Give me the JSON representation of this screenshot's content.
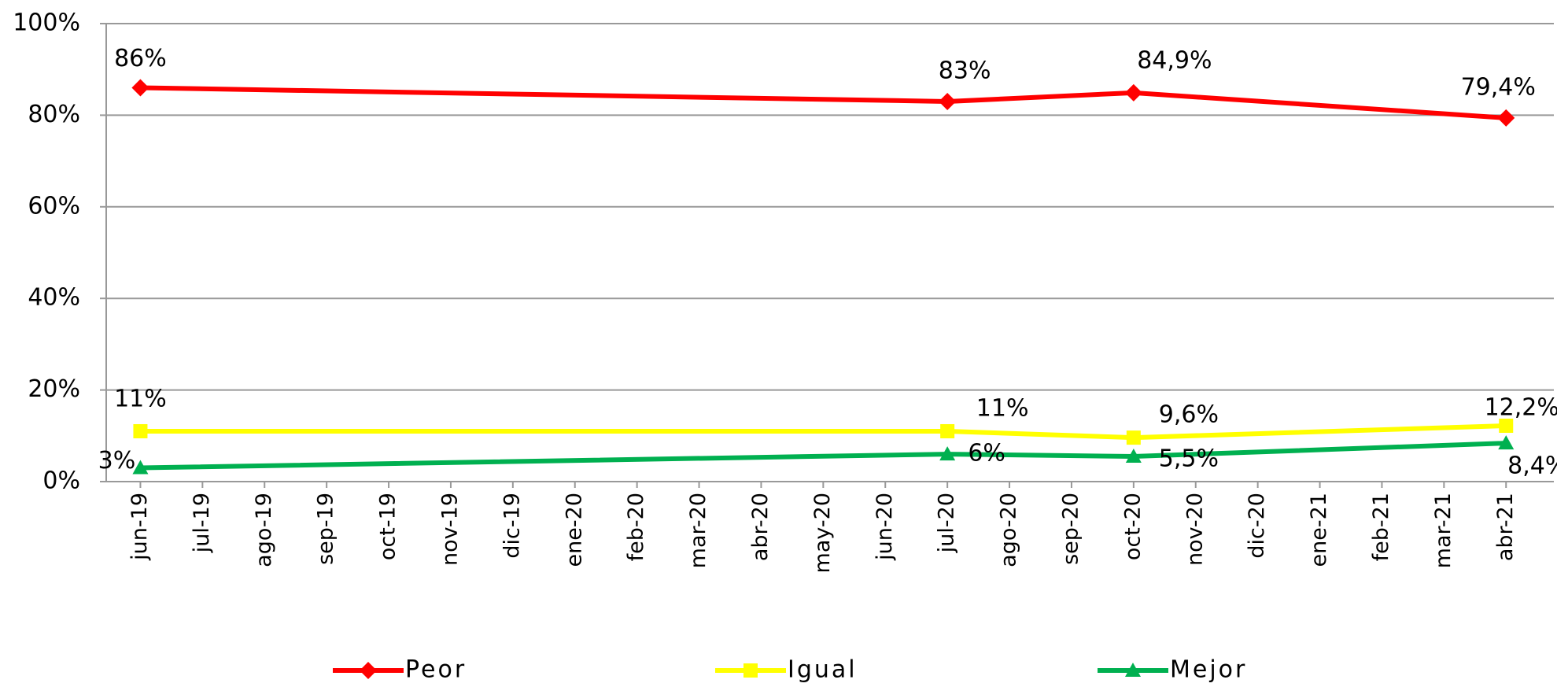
{
  "chart_data": {
    "type": "line",
    "categories": [
      "jun-19",
      "jul-19",
      "ago-19",
      "sep-19",
      "oct-19",
      "nov-19",
      "dic-19",
      "ene-20",
      "feb-20",
      "mar-20",
      "abr-20",
      "may-20",
      "jun-20",
      "jul-20",
      "ago-20",
      "sep-20",
      "oct-20",
      "nov-20",
      "dic-20",
      "ene-21",
      "feb-21",
      "mar-21",
      "abr-21"
    ],
    "series": [
      {
        "name": "Peor",
        "color": "#ff0000",
        "marker": "diamond",
        "x": [
          "jun-19",
          "jul-20",
          "oct-20",
          "abr-21"
        ],
        "values": [
          86,
          83,
          84.9,
          79.4
        ],
        "value_labels": [
          "86%",
          "83%",
          "84,9%",
          "79,4%"
        ]
      },
      {
        "name": "Igual",
        "color": "#ffff00",
        "marker": "square",
        "x": [
          "jun-19",
          "jul-20",
          "oct-20",
          "abr-21"
        ],
        "values": [
          11,
          11,
          9.6,
          12.2
        ],
        "value_labels": [
          "11%",
          "11%",
          "9,6%",
          "12,2%"
        ]
      },
      {
        "name": "Mejor",
        "color": "#00b050",
        "marker": "triangle",
        "x": [
          "jun-19",
          "jul-20",
          "oct-20",
          "abr-21"
        ],
        "values": [
          3,
          6,
          5.5,
          8.4
        ],
        "value_labels": [
          "3%",
          "6%",
          "5,5%",
          "8,4%"
        ]
      }
    ],
    "ylim": [
      0,
      100
    ],
    "yticks": [
      {
        "value": 0,
        "label": "0%"
      },
      {
        "value": 20,
        "label": "20%"
      },
      {
        "value": 40,
        "label": "40%"
      },
      {
        "value": 60,
        "label": "60%"
      },
      {
        "value": 80,
        "label": "80%"
      },
      {
        "value": 100,
        "label": "100%"
      }
    ],
    "grid": true,
    "legend": "bottom"
  }
}
